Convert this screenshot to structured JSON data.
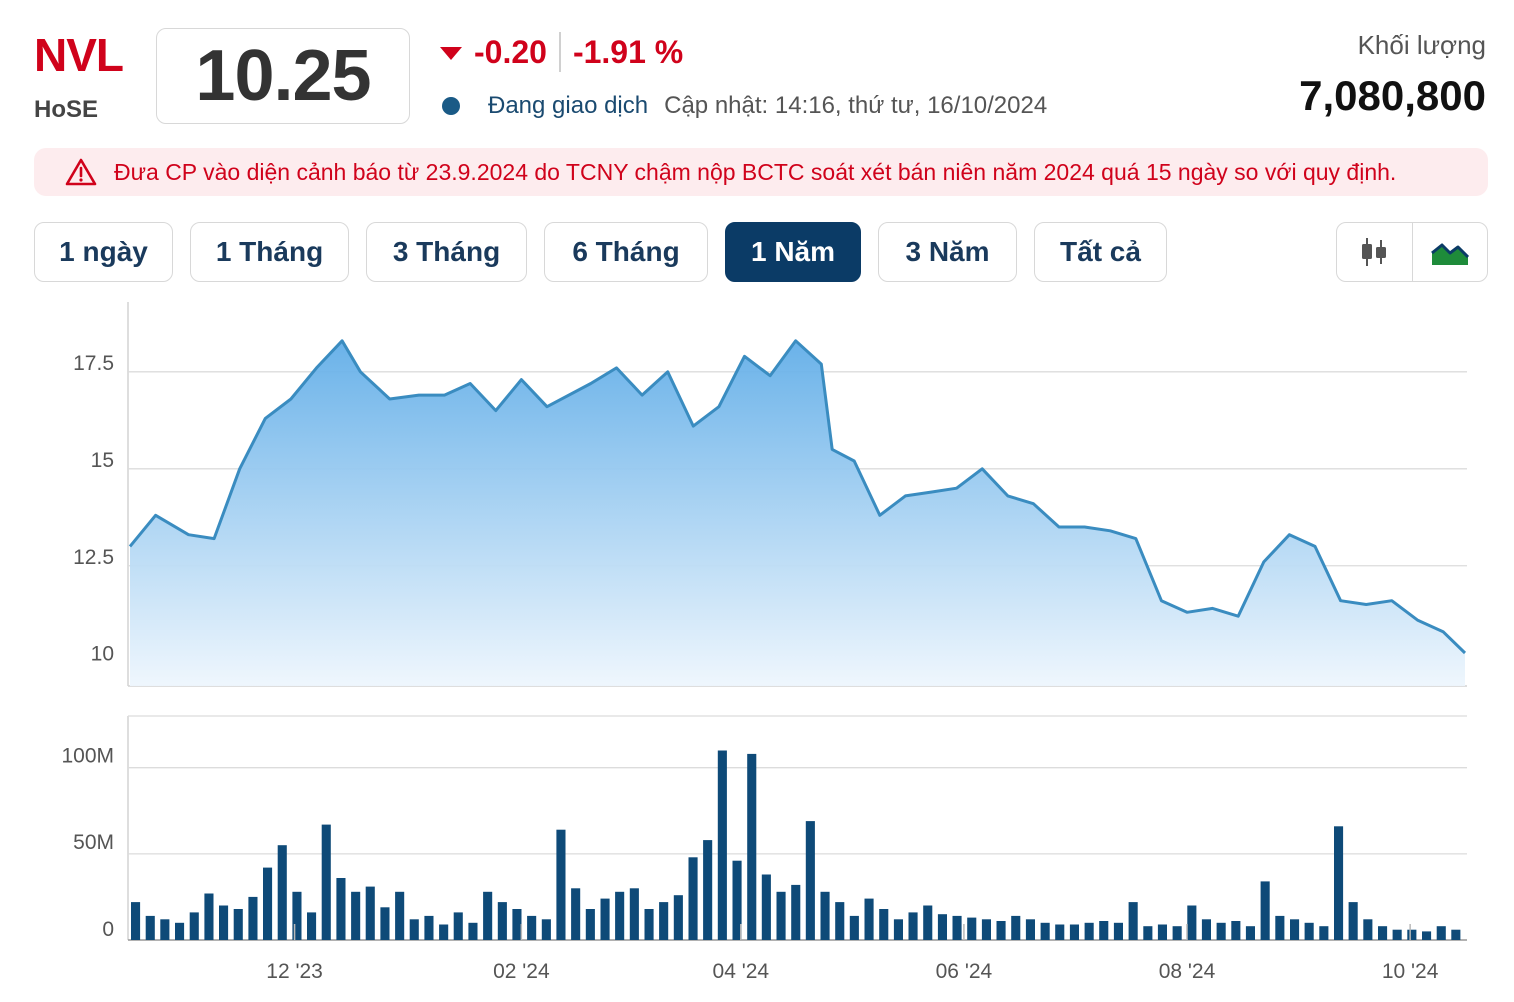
{
  "stock": {
    "ticker": "NVL",
    "exchange": "HoSE",
    "price": "10.25",
    "change": "-0.20",
    "change_pct": "-1.91 %",
    "status": "Đang giao dịch",
    "updated": "Cập nhật: 14:16, thứ tư, 16/10/2024",
    "volume_label": "Khối lượng",
    "volume": "7,080,800"
  },
  "warning": {
    "text": "Đưa CP vào diện cảnh báo từ 23.9.2024 do TCNY chậm nộp BCTC soát xét bán niên năm 2024 quá 15 ngày so với quy định."
  },
  "ranges": [
    "1 ngày",
    "1 Tháng",
    "3 Tháng",
    "6 Tháng",
    "1 Năm",
    "3 Năm",
    "Tất cả"
  ],
  "active_range": "1 Năm",
  "chart_types": [
    "candlestick-icon",
    "area-chart-icon"
  ],
  "colors": {
    "red": "#d0021b",
    "navy": "#0b3b66",
    "line": "#3a8cc0",
    "bar": "#0e4a78",
    "area_icon": "#1e8b3a"
  },
  "chart_data": [
    {
      "type": "area",
      "ylim": [
        9.4,
        19.3
      ],
      "yticks": [
        "17.5",
        "15",
        "12.5",
        "10"
      ],
      "x_tick_labels": [
        "12 '23",
        "02 '24",
        "04 '24",
        "06 '24",
        "08 '24",
        "10 '24"
      ],
      "x": [
        "2023-10-17",
        "2023-10-24",
        "2023-11-02",
        "2023-11-09",
        "2023-11-16",
        "2023-11-23",
        "2023-11-30",
        "2023-12-07",
        "2023-12-14",
        "2023-12-19",
        "2023-12-27",
        "2024-01-04",
        "2024-01-11",
        "2024-01-18",
        "2024-01-25",
        "2024-02-01",
        "2024-02-08",
        "2024-02-20",
        "2024-02-27",
        "2024-03-05",
        "2024-03-12",
        "2024-03-19",
        "2024-03-26",
        "2024-04-02",
        "2024-04-09",
        "2024-04-16",
        "2024-04-23",
        "2024-04-26",
        "2024-05-02",
        "2024-05-09",
        "2024-05-16",
        "2024-05-23",
        "2024-05-30",
        "2024-06-06",
        "2024-06-13",
        "2024-06-20",
        "2024-06-27",
        "2024-07-04",
        "2024-07-11",
        "2024-07-18",
        "2024-07-25",
        "2024-08-01",
        "2024-08-08",
        "2024-08-15",
        "2024-08-22",
        "2024-08-29",
        "2024-09-05",
        "2024-09-12",
        "2024-09-19",
        "2024-09-26",
        "2024-10-03",
        "2024-10-10",
        "2024-10-16"
      ],
      "series": [
        {
          "values": [
            13.0,
            13.8,
            13.3,
            13.2,
            15.0,
            16.3,
            16.8,
            17.6,
            18.3,
            17.5,
            16.8,
            16.9,
            16.9,
            17.2,
            16.5,
            17.3,
            16.6,
            17.2,
            17.6,
            16.9,
            17.5,
            16.1,
            16.6,
            17.9,
            17.4,
            18.3,
            17.7,
            15.5,
            15.2,
            13.8,
            14.3,
            14.4,
            14.5,
            15.0,
            14.3,
            14.1,
            13.5,
            13.5,
            13.4,
            13.2,
            11.6,
            11.3,
            11.4,
            11.2,
            12.6,
            13.3,
            13.0,
            11.6,
            11.5,
            11.6,
            11.1,
            10.8,
            10.25
          ]
        }
      ]
    },
    {
      "type": "bar",
      "ylim": [
        0,
        130
      ],
      "yticks": [
        "100M",
        "50M",
        "0"
      ],
      "values": [
        22,
        14,
        12,
        10,
        16,
        27,
        20,
        18,
        25,
        42,
        55,
        28,
        16,
        67,
        36,
        28,
        31,
        19,
        28,
        12,
        14,
        9,
        16,
        10,
        28,
        22,
        18,
        14,
        12,
        64,
        30,
        18,
        24,
        28,
        30,
        18,
        22,
        26,
        48,
        58,
        110,
        46,
        108,
        38,
        28,
        32,
        69,
        28,
        22,
        14,
        24,
        18,
        12,
        16,
        20,
        15,
        14,
        13,
        12,
        11,
        14,
        12,
        10,
        9,
        9,
        10,
        11,
        10,
        22,
        8,
        9,
        8,
        20,
        12,
        10,
        11,
        8,
        34,
        14,
        12,
        10,
        8,
        66,
        22,
        12,
        8,
        6,
        6,
        5,
        8,
        6
      ]
    }
  ]
}
